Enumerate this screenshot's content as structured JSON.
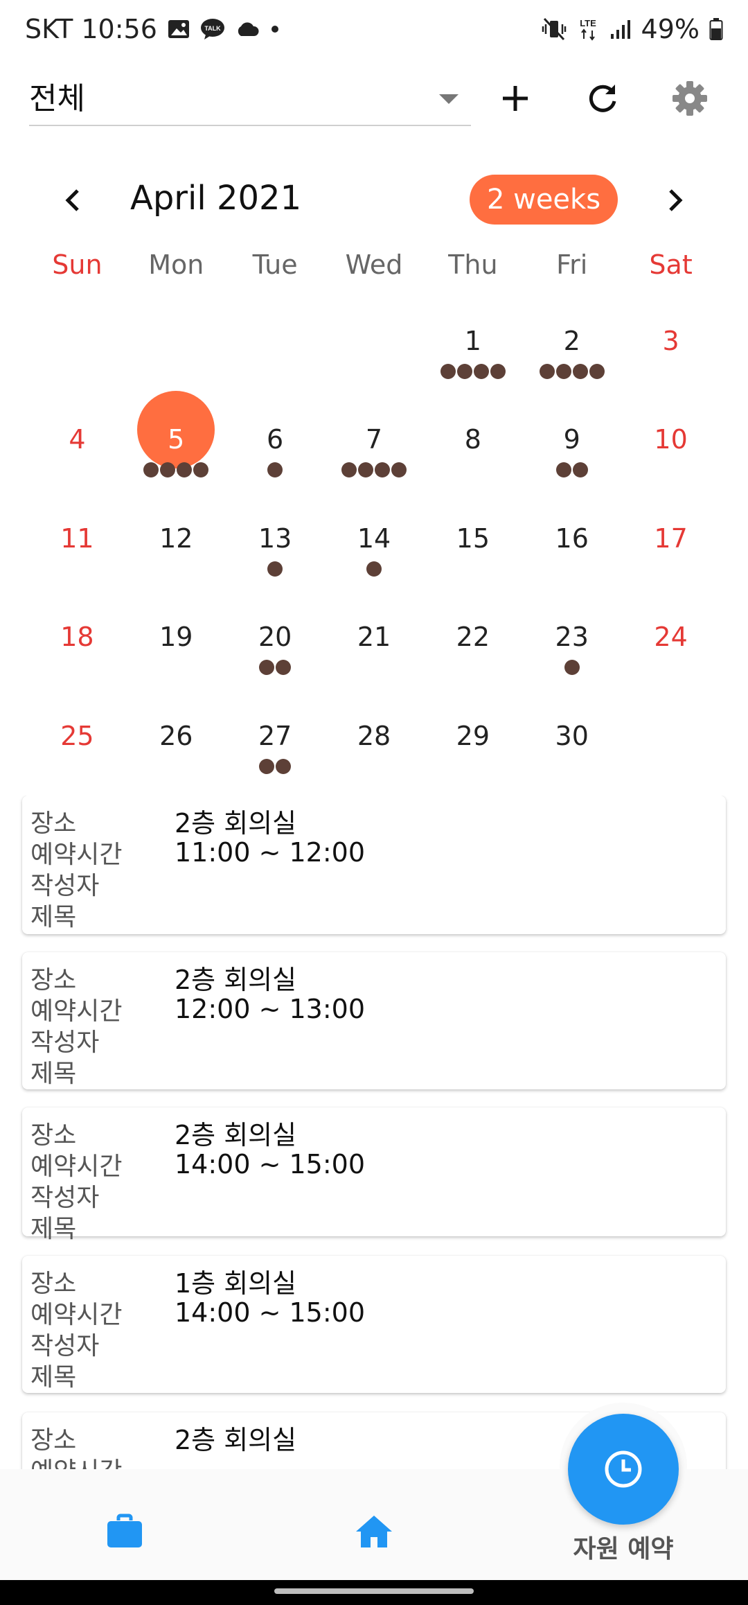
{
  "status_bar": {
    "carrier_time": "SKT 10:56",
    "network": "LTE",
    "battery": "49%"
  },
  "top_bar": {
    "filter_selected": "전체",
    "icons": [
      "dropdown-arrow-icon",
      "add-icon",
      "refresh-icon",
      "settings-icon"
    ]
  },
  "calendar": {
    "month_title": "April 2021",
    "view_mode": "2 weeks",
    "weekdays": [
      "Sun",
      "Mon",
      "Tue",
      "Wed",
      "Thu",
      "Fri",
      "Sat"
    ],
    "accent_color": "#ff6e40",
    "event_dot_color": "#5d4037",
    "weekend_color": "#e53935",
    "selected_day": "5",
    "days": [
      {
        "day": "",
        "dots": 0
      },
      {
        "day": "",
        "dots": 0
      },
      {
        "day": "",
        "dots": 0
      },
      {
        "day": "",
        "dots": 0
      },
      {
        "day": "1",
        "dots": 4
      },
      {
        "day": "2",
        "dots": 4
      },
      {
        "day": "3",
        "dots": 0
      },
      {
        "day": "4",
        "dots": 0
      },
      {
        "day": "5",
        "dots": 4
      },
      {
        "day": "6",
        "dots": 1
      },
      {
        "day": "7",
        "dots": 4
      },
      {
        "day": "8",
        "dots": 0
      },
      {
        "day": "9",
        "dots": 2
      },
      {
        "day": "10",
        "dots": 0
      },
      {
        "day": "11",
        "dots": 0
      },
      {
        "day": "12",
        "dots": 0
      },
      {
        "day": "13",
        "dots": 1
      },
      {
        "day": "14",
        "dots": 1
      },
      {
        "day": "15",
        "dots": 0
      },
      {
        "day": "16",
        "dots": 0
      },
      {
        "day": "17",
        "dots": 0
      },
      {
        "day": "18",
        "dots": 0
      },
      {
        "day": "19",
        "dots": 0
      },
      {
        "day": "20",
        "dots": 2
      },
      {
        "day": "21",
        "dots": 0
      },
      {
        "day": "22",
        "dots": 0
      },
      {
        "day": "23",
        "dots": 1
      },
      {
        "day": "24",
        "dots": 0
      },
      {
        "day": "25",
        "dots": 0
      },
      {
        "day": "26",
        "dots": 0
      },
      {
        "day": "27",
        "dots": 2
      },
      {
        "day": "28",
        "dots": 0
      },
      {
        "day": "29",
        "dots": 0
      },
      {
        "day": "30",
        "dots": 0
      },
      {
        "day": "",
        "dots": 0
      }
    ]
  },
  "reservations": {
    "labels": {
      "place": "장소",
      "time": "예약시간",
      "author": "작성자",
      "title": "제목"
    },
    "items": [
      {
        "place": "2층 회의실",
        "time": "11:00 ~ 12:00",
        "author": "",
        "title": ""
      },
      {
        "place": "2층 회의실",
        "time": "12:00 ~ 13:00",
        "author": "",
        "title": ""
      },
      {
        "place": "2층 회의실",
        "time": "14:00 ~ 15:00",
        "author": "",
        "title": ""
      },
      {
        "place": "1층 회의실",
        "time": "14:00 ~ 15:00",
        "author": "",
        "title": ""
      },
      {
        "place": "2층 회의실",
        "time": "",
        "author": "",
        "title": ""
      }
    ]
  },
  "bottom_nav": {
    "fab_label": "자원 예약",
    "primary_color": "#2196f3",
    "icons": [
      "briefcase-icon",
      "home-icon",
      "clock-icon"
    ]
  }
}
